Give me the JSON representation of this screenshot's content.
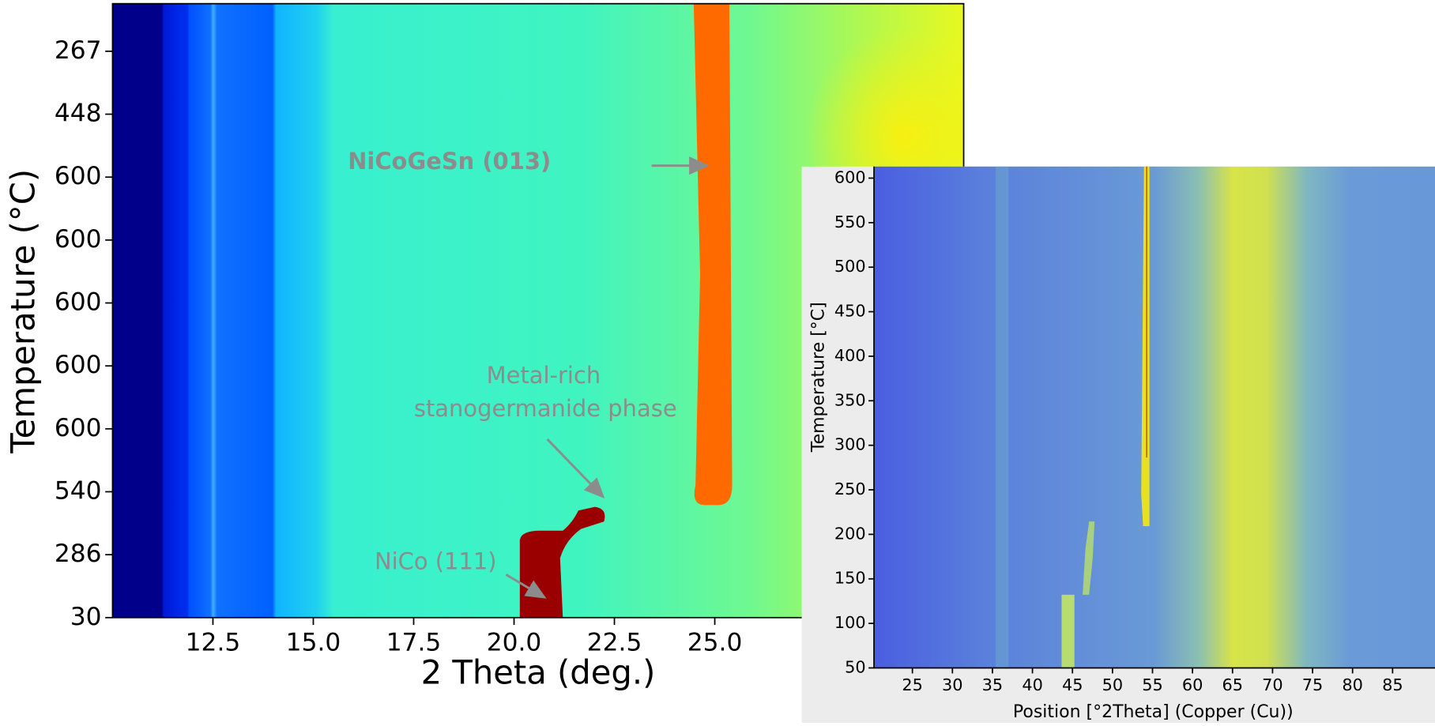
{
  "chart_data": [
    {
      "type": "heatmap",
      "xlabel": "2 Theta (deg.)",
      "ylabel": "Temperature (°C)",
      "xlim": [
        10,
        31.2
      ],
      "xticks": [
        12.5,
        {
          "value": 15,
          "label": "15.0"
        },
        17.5,
        {
          "value": 20,
          "label": "20.0"
        },
        22.5,
        {
          "value": 25,
          "label": "25.0"
        }
      ],
      "y_categories": [
        "30",
        "286",
        "540",
        "600",
        "600",
        "600",
        "600",
        "600",
        "448",
        "267"
      ],
      "annotations": [
        "NiCoGeSn (013)",
        "Metal-rich",
        "stanogermanide phase",
        "NiCo (111)"
      ]
    },
    {
      "type": "heatmap",
      "xlabel": "Position [°2Theta] (Copper (Cu))",
      "ylabel": "Temperature [°C]",
      "xlim": [
        20.2,
        90.3
      ],
      "xticks": [
        25,
        30,
        35,
        40,
        45,
        50,
        55,
        60,
        65,
        70,
        75,
        80,
        85
      ],
      "ylim": [
        50,
        613
      ],
      "yticks": [
        50,
        100,
        150,
        200,
        250,
        300,
        350,
        400,
        450,
        500,
        550,
        600
      ]
    }
  ]
}
